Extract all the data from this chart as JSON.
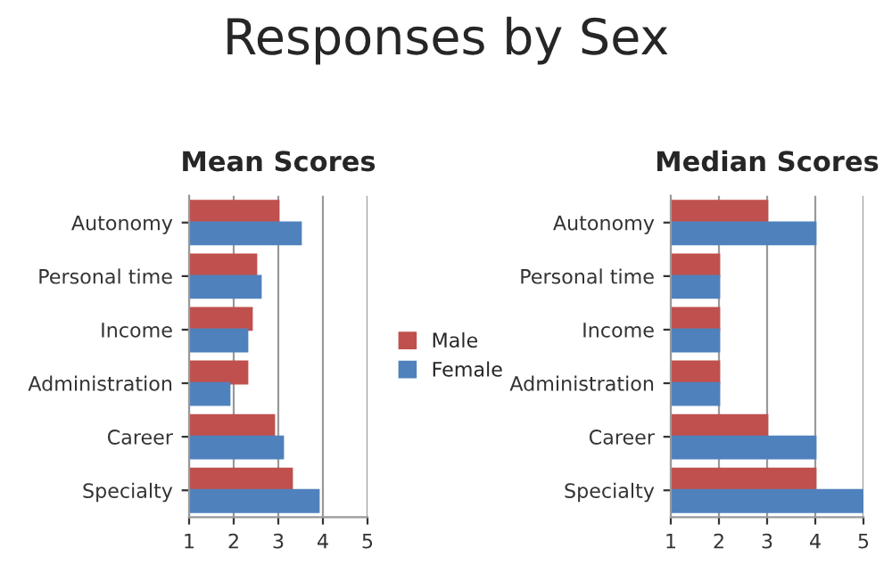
{
  "chart_data": [
    {
      "type": "bar",
      "orientation": "horizontal",
      "title": "Mean Scores",
      "annotations": [
        "Responses by Sex"
      ],
      "categories": [
        "Autonomy",
        "Personal time",
        "Income",
        "Administration",
        "Career",
        "Specialty"
      ],
      "series": [
        {
          "name": "Male",
          "color": "#c0504d",
          "values": [
            3.0,
            2.5,
            2.4,
            2.3,
            2.9,
            3.3
          ]
        },
        {
          "name": "Female",
          "color": "#4f81bd",
          "values": [
            3.5,
            2.6,
            2.3,
            1.9,
            3.1,
            3.9
          ]
        }
      ],
      "xlim": [
        1,
        5
      ],
      "xticks": [
        1,
        2,
        3,
        4,
        5
      ],
      "grid": "x",
      "legend": "right"
    },
    {
      "type": "bar",
      "orientation": "horizontal",
      "title": "Median Scores",
      "categories": [
        "Autonomy",
        "Personal time",
        "Income",
        "Administration",
        "Career",
        "Specialty"
      ],
      "series": [
        {
          "color": "#c0504d",
          "values": [
            3,
            2,
            2,
            2,
            3,
            4
          ]
        },
        {
          "color": "#4f81bd",
          "values": [
            4,
            2,
            2,
            2,
            4,
            5
          ]
        }
      ],
      "xlim": [
        1,
        5
      ],
      "xticks": [
        1,
        2,
        3,
        4,
        5
      ],
      "grid": "x",
      "legend": false
    }
  ]
}
